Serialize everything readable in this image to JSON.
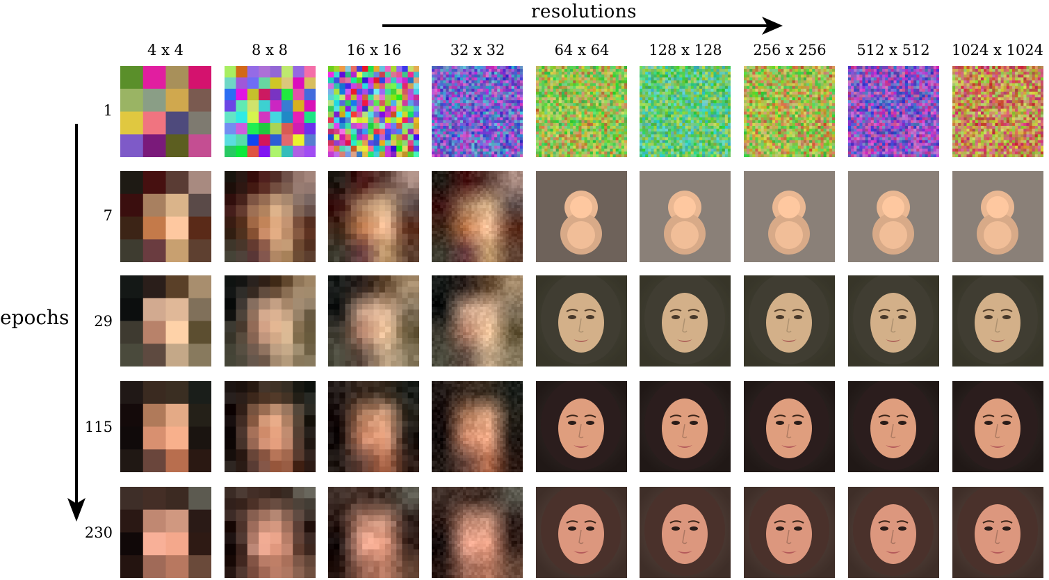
{
  "header": {
    "resolutions_label": "resolutions",
    "epochs_label": "epochs"
  },
  "columns": [
    "4 x 4",
    "8 x 8",
    "16 x 16",
    "32 x 32",
    "64 x 64",
    "128 x 128",
    "256 x 256",
    "512 x 512",
    "1024 x 1024"
  ],
  "rows": [
    "1",
    "7",
    "29",
    "115",
    "230"
  ],
  "palettes": {
    "c4_1": [
      "#5a8f2a",
      "#e11ea0",
      "#a8905a",
      "#d4126e",
      "#9ab464",
      "#8a9e86",
      "#d0a84e",
      "#7a5a50",
      "#e0c840",
      "#f07480",
      "#4e4a7c",
      "#7e7a70",
      "#7e5ac8",
      "#7a1a7a",
      "#5c5e20",
      "#c44e92"
    ],
    "c4_7": [
      "#1e1a14",
      "#461010",
      "#5a3c34",
      "#a88a80",
      "#3a0e0e",
      "#a88060",
      "#dab48a",
      "#5a4a48",
      "#3c2416",
      "#c47a4a",
      "#fec8a0",
      "#5a2a18",
      "#3e3c30",
      "#6a3c40",
      "#c8a070",
      "#5e4030"
    ],
    "c4_29": [
      "#141816",
      "#2a1e1a",
      "#5a4028",
      "#a88e6e",
      "#0c0e0e",
      "#d2aa90",
      "#e0b898",
      "#80705a",
      "#3e3a30",
      "#b8826a",
      "#fed2a8",
      "#5c4e30",
      "#4a4a3c",
      "#5e4a40",
      "#c4a888",
      "#887a5e"
    ],
    "c4_115": [
      "#201816",
      "#3a2a20",
      "#3a2e22",
      "#1a1e1a",
      "#140a0a",
      "#b07a5a",
      "#e4aa86",
      "#242018",
      "#100a0a",
      "#d89070",
      "#f8b08c",
      "#1a1410",
      "#201814",
      "#6a463c",
      "#b86e4e",
      "#2a1812"
    ],
    "c4_230": [
      "#3e2e28",
      "#442e26",
      "#3c2a22",
      "#5c5a50",
      "#2a1814",
      "#c08872",
      "#d09880",
      "#2a1a16",
      "#100808",
      "#f8b098",
      "#f4a88c",
      "#2e1a14",
      "#241410",
      "#a06a58",
      "#b87860",
      "#6a4a3a"
    ]
  }
}
